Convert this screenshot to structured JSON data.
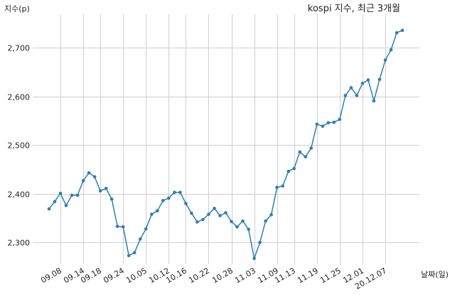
{
  "chart_data": {
    "type": "line",
    "title": "kospi 지수, 최근 3개월",
    "ylabel": "지수(p)",
    "xlabel": "날짜(일)",
    "ylim": [
      2255,
      2775
    ],
    "yticks": [
      2300,
      2400,
      2500,
      2600,
      2700
    ],
    "ytick_labels": [
      "2,300",
      "2,400",
      "2,500",
      "2,600",
      "2,700"
    ],
    "xtick_labels": [
      "09.08",
      "09.14",
      "09.18",
      "09.24",
      "10.05",
      "10.12",
      "10.16",
      "10.22",
      "10.28",
      "11.03",
      "11.09",
      "11.13",
      "11.19",
      "11.25",
      "12.01",
      "20.12.07"
    ],
    "xtick_indices": [
      2,
      6,
      9,
      13,
      17,
      21,
      24,
      28,
      32,
      36,
      40,
      43,
      47,
      51,
      55,
      59
    ],
    "grid": true,
    "color": "#2f7db5",
    "series": [
      {
        "values": [
          2369,
          2384,
          2401,
          2376,
          2397,
          2397,
          2427,
          2443,
          2435,
          2406,
          2411,
          2389,
          2333,
          2332,
          2273,
          2279,
          2307,
          2328,
          2358,
          2365,
          2386,
          2391,
          2403,
          2403,
          2380,
          2360,
          2342,
          2347,
          2358,
          2370,
          2355,
          2361,
          2343,
          2332,
          2344,
          2327,
          2267,
          2300,
          2344,
          2357,
          2413,
          2416,
          2446,
          2452,
          2486,
          2476,
          2494,
          2543,
          2539,
          2546,
          2547,
          2553,
          2602,
          2618,
          2602,
          2627,
          2634,
          2591,
          2635,
          2675,
          2696,
          2731,
          2736
        ]
      }
    ]
  }
}
